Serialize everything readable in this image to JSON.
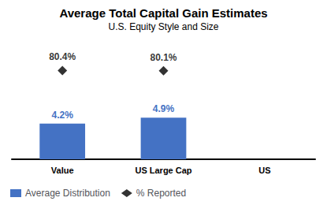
{
  "chart_data": {
    "type": "bar",
    "title": "Average Total Capital Gain Estimates",
    "subtitle": "U.S. Equity Style and Size",
    "categories": [
      "Value",
      "US Large Cap",
      "US"
    ],
    "series": [
      {
        "name": "Average Distribution",
        "type": "bar",
        "color": "#4472C4",
        "values": [
          4.2,
          4.9,
          null
        ],
        "value_labels": [
          "4.2%",
          "4.9%",
          null
        ]
      },
      {
        "name": "% Reported",
        "type": "scatter",
        "color": "#000000",
        "marker": "diamond",
        "axis": "y2",
        "values": [
          80.4,
          80.1,
          null
        ],
        "value_labels": [
          "80.4%",
          "80.1%",
          null
        ]
      }
    ],
    "ylim": [
      0,
      13
    ],
    "y2lim": [
      0,
      100
    ],
    "tick_labels": "x",
    "data_labels": true,
    "legend": "bottom left",
    "grid": false
  }
}
